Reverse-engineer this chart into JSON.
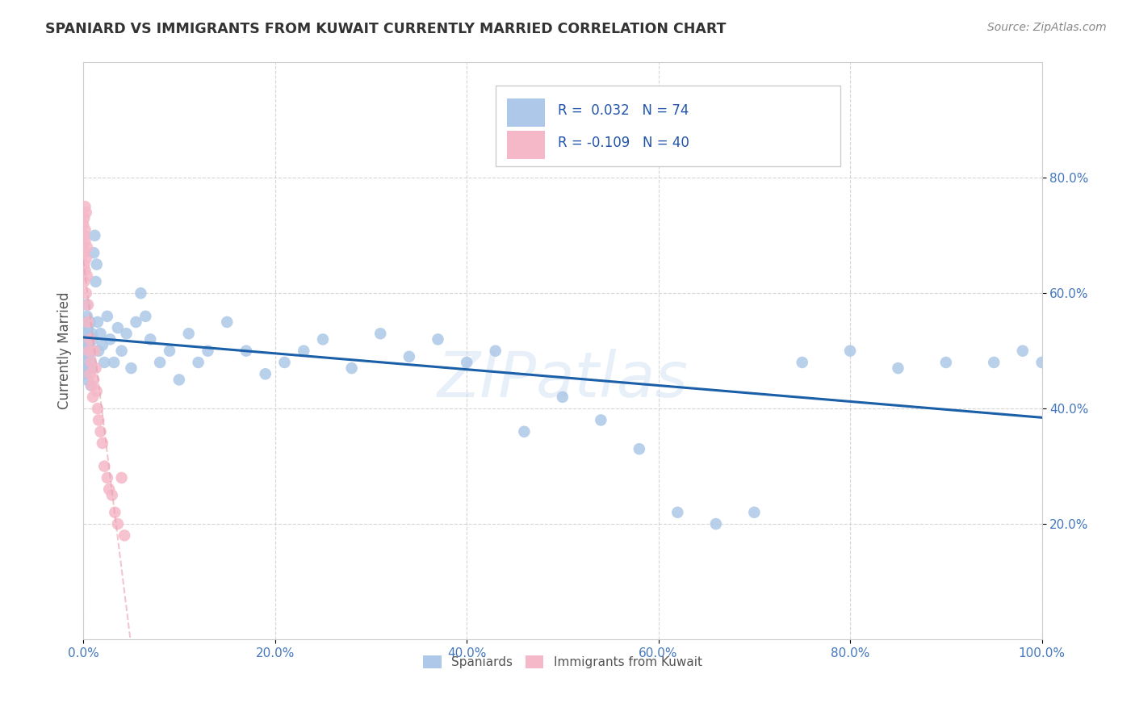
{
  "title": "SPANIARD VS IMMIGRANTS FROM KUWAIT CURRENTLY MARRIED CORRELATION CHART",
  "source_text": "Source: ZipAtlas.com",
  "ylabel": "Currently Married",
  "watermark": "ZIPatlas",
  "spaniard_color": "#adc8e8",
  "kuwait_color": "#f5b8c8",
  "spaniard_line_color": "#1a5fa8",
  "kuwait_line_color": "#e87090",
  "kuwait_line_dash": [
    6,
    4
  ],
  "background_color": "#ffffff",
  "grid_color": "#cccccc",
  "title_color": "#333333",
  "tick_color": "#4477bb",
  "spaniard_r": 0.032,
  "kuwait_r": -0.109,
  "spaniard_intercept": 0.47,
  "spaniard_slope": 0.025,
  "kuwait_intercept": 0.54,
  "kuwait_slope": -1.1,
  "spaniard_scatter_x": [
    0.001,
    0.001,
    0.002,
    0.002,
    0.003,
    0.003,
    0.003,
    0.004,
    0.004,
    0.004,
    0.005,
    0.005,
    0.005,
    0.006,
    0.006,
    0.007,
    0.007,
    0.008,
    0.008,
    0.009,
    0.009,
    0.01,
    0.011,
    0.012,
    0.013,
    0.014,
    0.015,
    0.016,
    0.018,
    0.02,
    0.022,
    0.025,
    0.028,
    0.032,
    0.036,
    0.04,
    0.045,
    0.05,
    0.055,
    0.06,
    0.065,
    0.07,
    0.08,
    0.09,
    0.1,
    0.11,
    0.12,
    0.13,
    0.15,
    0.17,
    0.19,
    0.21,
    0.23,
    0.25,
    0.28,
    0.31,
    0.34,
    0.37,
    0.4,
    0.43,
    0.46,
    0.5,
    0.54,
    0.58,
    0.62,
    0.66,
    0.7,
    0.75,
    0.8,
    0.85,
    0.9,
    0.95,
    0.98,
    1.0
  ],
  "spaniard_scatter_y": [
    0.5,
    0.55,
    0.52,
    0.46,
    0.48,
    0.53,
    0.58,
    0.5,
    0.45,
    0.56,
    0.51,
    0.47,
    0.54,
    0.49,
    0.52,
    0.55,
    0.48,
    0.5,
    0.44,
    0.53,
    0.47,
    0.52,
    0.67,
    0.7,
    0.62,
    0.65,
    0.55,
    0.5,
    0.53,
    0.51,
    0.48,
    0.56,
    0.52,
    0.48,
    0.54,
    0.5,
    0.53,
    0.47,
    0.55,
    0.6,
    0.56,
    0.52,
    0.48,
    0.5,
    0.45,
    0.53,
    0.48,
    0.5,
    0.55,
    0.5,
    0.46,
    0.48,
    0.5,
    0.52,
    0.47,
    0.53,
    0.49,
    0.52,
    0.48,
    0.5,
    0.36,
    0.42,
    0.38,
    0.33,
    0.22,
    0.2,
    0.22,
    0.48,
    0.5,
    0.47,
    0.48,
    0.48,
    0.5,
    0.48
  ],
  "kuwait_scatter_x": [
    0.0,
    0.0,
    0.001,
    0.001,
    0.001,
    0.001,
    0.001,
    0.002,
    0.002,
    0.002,
    0.002,
    0.003,
    0.003,
    0.003,
    0.004,
    0.004,
    0.005,
    0.005,
    0.006,
    0.007,
    0.007,
    0.008,
    0.009,
    0.01,
    0.011,
    0.012,
    0.013,
    0.014,
    0.015,
    0.016,
    0.018,
    0.02,
    0.022,
    0.025,
    0.027,
    0.03,
    0.033,
    0.036,
    0.04,
    0.043
  ],
  "kuwait_scatter_y": [
    0.72,
    0.68,
    0.73,
    0.65,
    0.7,
    0.67,
    0.62,
    0.75,
    0.69,
    0.64,
    0.71,
    0.74,
    0.66,
    0.6,
    0.63,
    0.68,
    0.55,
    0.58,
    0.5,
    0.52,
    0.46,
    0.48,
    0.44,
    0.42,
    0.45,
    0.5,
    0.47,
    0.43,
    0.4,
    0.38,
    0.36,
    0.34,
    0.3,
    0.28,
    0.26,
    0.25,
    0.22,
    0.2,
    0.28,
    0.18
  ]
}
